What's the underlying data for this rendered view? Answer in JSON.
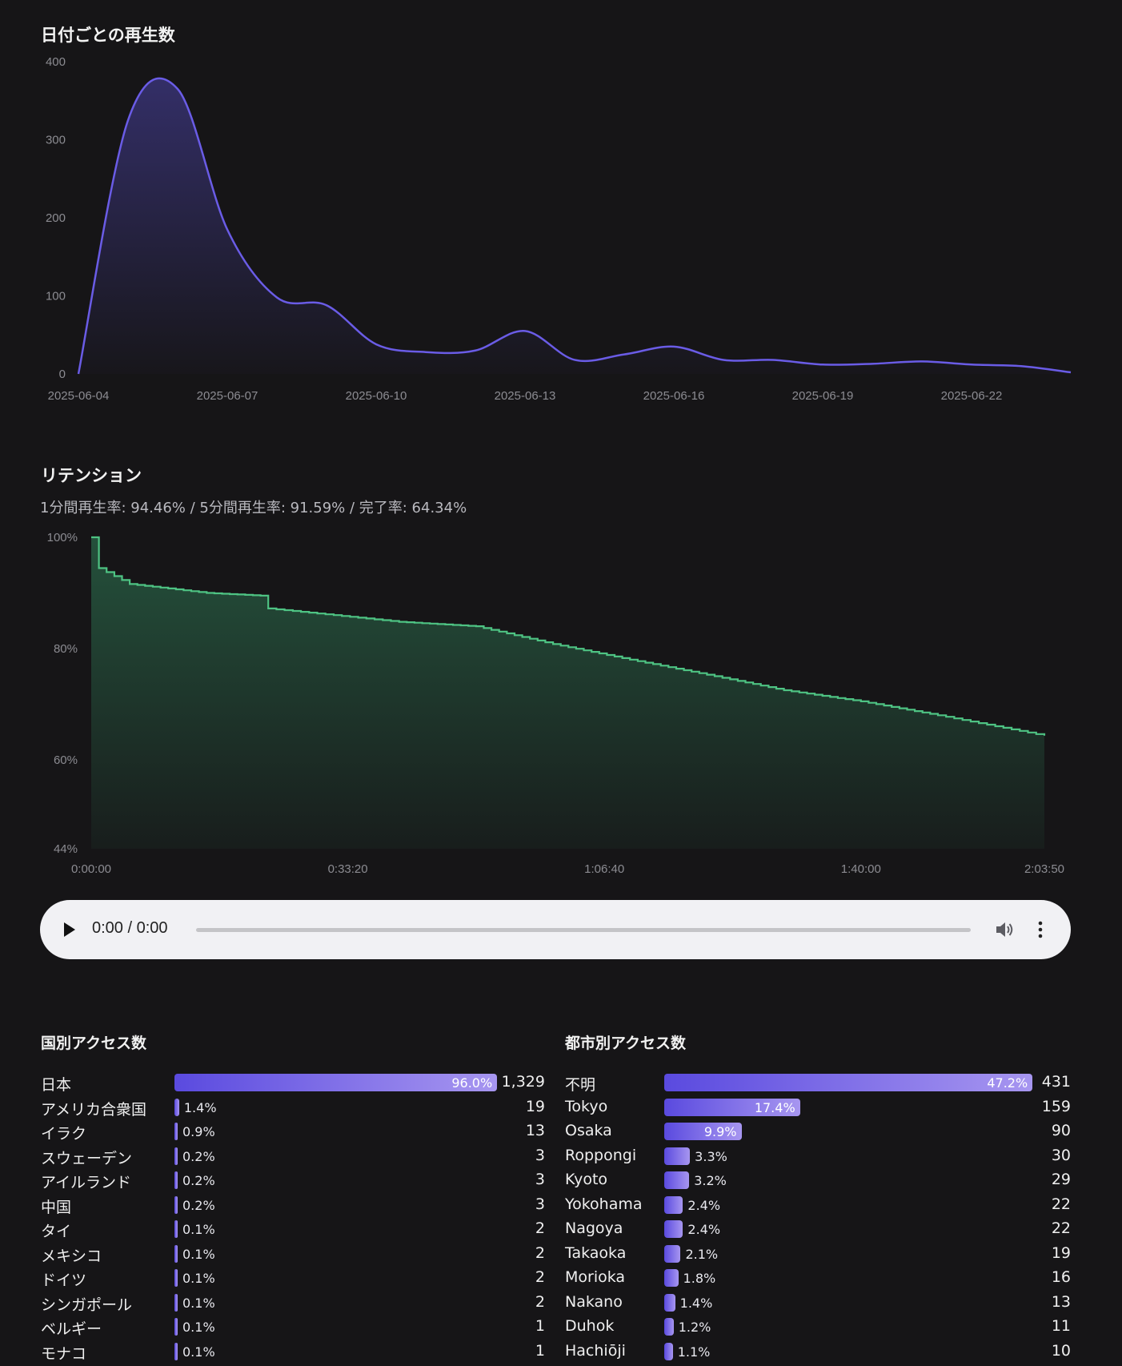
{
  "daily": {
    "title": "日付ごとの再生数",
    "chart_data": {
      "type": "area",
      "x": [
        "2025-06-04",
        "2025-06-05",
        "2025-06-06",
        "2025-06-07",
        "2025-06-08",
        "2025-06-09",
        "2025-06-10",
        "2025-06-11",
        "2025-06-12",
        "2025-06-13",
        "2025-06-14",
        "2025-06-15",
        "2025-06-16",
        "2025-06-17",
        "2025-06-18",
        "2025-06-19",
        "2025-06-20",
        "2025-06-21",
        "2025-06-22",
        "2025-06-23",
        "2025-06-24"
      ],
      "values": [
        0,
        325,
        365,
        185,
        98,
        88,
        38,
        28,
        30,
        55,
        18,
        25,
        35,
        18,
        18,
        12,
        13,
        16,
        12,
        10,
        2
      ],
      "ylim": [
        0,
        400
      ],
      "yticks": [
        "0",
        "100",
        "200",
        "300",
        "400"
      ],
      "xticks": [
        "2025-06-04",
        "2025-06-07",
        "2025-06-10",
        "2025-06-13",
        "2025-06-16",
        "2025-06-19",
        "2025-06-22"
      ],
      "grid": false,
      "color": "#6a5ce6"
    }
  },
  "retention": {
    "title": "リテンション",
    "summary": "1分間再生率: 94.46% / 5分間再生率: 91.59% / 完了率: 64.34%",
    "chart_data": {
      "type": "area",
      "x": [
        "0:00:00",
        "0:01:00",
        "0:05:00",
        "0:15:00",
        "0:22:00",
        "0:23:00",
        "0:40:00",
        "0:50:00",
        "1:00:00",
        "1:10:00",
        "1:20:00",
        "1:30:00",
        "1:40:00",
        "1:50:00",
        "2:03:50"
      ],
      "values": [
        100,
        94.46,
        91.59,
        90,
        89.5,
        87.2,
        84.8,
        84,
        80.8,
        78,
        75.3,
        72.5,
        70.5,
        68,
        64.34
      ],
      "ylim": [
        44,
        100
      ],
      "yticks": [
        "44%",
        "60%",
        "80%",
        "100%"
      ],
      "xticks": [
        "0:00:00",
        "0:33:20",
        "1:06:40",
        "1:40:00",
        "2:03:50"
      ],
      "grid": false,
      "color": "#4ec383"
    }
  },
  "audio": {
    "time": "0:00 / 0:00",
    "icons": [
      "play-icon",
      "volume-icon",
      "more-vertical-icon"
    ]
  },
  "countries": {
    "title": "国別アクセス数",
    "rows": [
      {
        "name": "日本",
        "pct": "96.0%",
        "frac": 0.96,
        "count": "1,329"
      },
      {
        "name": "アメリカ合衆国",
        "pct": "1.4%",
        "frac": 0.014,
        "count": "19"
      },
      {
        "name": "イラク",
        "pct": "0.9%",
        "frac": 0.009,
        "count": "13"
      },
      {
        "name": "スウェーデン",
        "pct": "0.2%",
        "frac": 0.002,
        "count": "3"
      },
      {
        "name": "アイルランド",
        "pct": "0.2%",
        "frac": 0.002,
        "count": "3"
      },
      {
        "name": "中国",
        "pct": "0.2%",
        "frac": 0.002,
        "count": "3"
      },
      {
        "name": "タイ",
        "pct": "0.1%",
        "frac": 0.001,
        "count": "2"
      },
      {
        "name": "メキシコ",
        "pct": "0.1%",
        "frac": 0.001,
        "count": "2"
      },
      {
        "name": "ドイツ",
        "pct": "0.1%",
        "frac": 0.001,
        "count": "2"
      },
      {
        "name": "シンガポール",
        "pct": "0.1%",
        "frac": 0.001,
        "count": "2"
      },
      {
        "name": "ベルギー",
        "pct": "0.1%",
        "frac": 0.001,
        "count": "1"
      },
      {
        "name": "モナコ",
        "pct": "0.1%",
        "frac": 0.001,
        "count": "1"
      }
    ]
  },
  "cities": {
    "title": "都市別アクセス数",
    "rows": [
      {
        "name": "不明",
        "pct": "47.2%",
        "frac": 0.472,
        "count": "431"
      },
      {
        "name": "Tokyo",
        "pct": "17.4%",
        "frac": 0.174,
        "count": "159"
      },
      {
        "name": "Osaka",
        "pct": "9.9%",
        "frac": 0.099,
        "count": "90"
      },
      {
        "name": "Roppongi",
        "pct": "3.3%",
        "frac": 0.033,
        "count": "30"
      },
      {
        "name": "Kyoto",
        "pct": "3.2%",
        "frac": 0.032,
        "count": "29"
      },
      {
        "name": "Yokohama",
        "pct": "2.4%",
        "frac": 0.024,
        "count": "22"
      },
      {
        "name": "Nagoya",
        "pct": "2.4%",
        "frac": 0.024,
        "count": "22"
      },
      {
        "name": "Takaoka",
        "pct": "2.1%",
        "frac": 0.021,
        "count": "19"
      },
      {
        "name": "Morioka",
        "pct": "1.8%",
        "frac": 0.018,
        "count": "16"
      },
      {
        "name": "Nakano",
        "pct": "1.4%",
        "frac": 0.014,
        "count": "13"
      },
      {
        "name": "Duhok",
        "pct": "1.2%",
        "frac": 0.012,
        "count": "11"
      },
      {
        "name": "Hachiōji",
        "pct": "1.1%",
        "frac": 0.011,
        "count": "10"
      }
    ]
  }
}
